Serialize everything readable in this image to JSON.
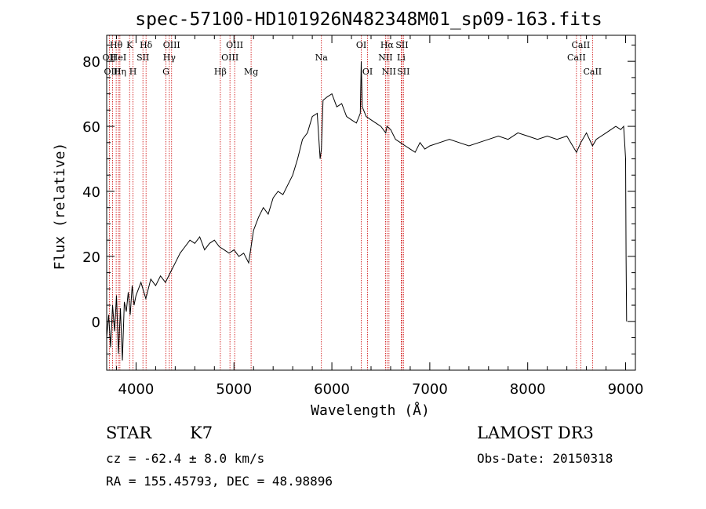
{
  "chart_data": {
    "type": "line",
    "title": "spec-57100-HD101926N482348M01_sp09-163.fits",
    "xlabel": "Wavelength (Å)",
    "ylabel": "Flux (relative)",
    "xlim": [
      3700,
      9100
    ],
    "ylim": [
      -15,
      88
    ],
    "x_ticks": [
      4000,
      5000,
      6000,
      7000,
      8000,
      9000
    ],
    "y_ticks": [
      0,
      20,
      40,
      60,
      80
    ],
    "grid": false,
    "series": [
      {
        "x": [
          3700,
          3720,
          3740,
          3760,
          3780,
          3800,
          3820,
          3840,
          3860,
          3880,
          3900,
          3920,
          3940,
          3960,
          3980,
          4000,
          4050,
          4100,
          4150,
          4200,
          4250,
          4300,
          4350,
          4400,
          4450,
          4500,
          4550,
          4600,
          4650,
          4700,
          4750,
          4800,
          4850,
          4900,
          4950,
          5000,
          5050,
          5100,
          5150,
          5200,
          5250,
          5300,
          5350,
          5400,
          5450,
          5500,
          5550,
          5600,
          5650,
          5700,
          5750,
          5800,
          5850,
          5880,
          5893,
          5910,
          5950,
          6000,
          6050,
          6100,
          6150,
          6200,
          6250,
          6290,
          6300,
          6310,
          6350,
          6400,
          6450,
          6500,
          6550,
          6563,
          6600,
          6650,
          6700,
          6750,
          6800,
          6850,
          6900,
          6950,
          7000,
          7100,
          7200,
          7300,
          7400,
          7500,
          7600,
          7700,
          7800,
          7900,
          8000,
          8100,
          8200,
          8300,
          8400,
          8498,
          8542,
          8600,
          8662,
          8700,
          8800,
          8900,
          8950,
          8980,
          8990,
          9000,
          9005,
          9010
        ],
        "y": [
          -5,
          2,
          -8,
          5,
          -3,
          8,
          -10,
          4,
          -12,
          6,
          3,
          9,
          2,
          11,
          5,
          8,
          12,
          7,
          13,
          11,
          14,
          12,
          15,
          18,
          21,
          23,
          25,
          24,
          26,
          22,
          24,
          25,
          23,
          22,
          21,
          22,
          20,
          21,
          18,
          28,
          32,
          35,
          33,
          38,
          40,
          39,
          42,
          45,
          50,
          56,
          58,
          63,
          64,
          50,
          53,
          68,
          69,
          70,
          66,
          67,
          63,
          62,
          61,
          64,
          80,
          66,
          63,
          62,
          61,
          60,
          58,
          60,
          59,
          56,
          55,
          54,
          53,
          52,
          55,
          53,
          54,
          55,
          56,
          55,
          54,
          55,
          56,
          57,
          56,
          58,
          57,
          56,
          57,
          56,
          57,
          52,
          55,
          58,
          54,
          56,
          58,
          60,
          59,
          60,
          55,
          50,
          20,
          0
        ]
      }
    ],
    "lines": [
      {
        "label": "Hθ",
        "x": 3797,
        "row": 1
      },
      {
        "label": "OII",
        "x": 3727,
        "row": 2
      },
      {
        "label": "HeI",
        "x": 3820,
        "row": 2
      },
      {
        "label": "OIII",
        "x": 3760,
        "row": 3
      },
      {
        "label": "Hη",
        "x": 3835,
        "row": 3
      },
      {
        "label": "K",
        "x": 3934,
        "row": 1
      },
      {
        "label": "H",
        "x": 3969,
        "row": 3
      },
      {
        "label": "SII",
        "x": 4070,
        "row": 2
      },
      {
        "label": "Hδ",
        "x": 4102,
        "row": 1
      },
      {
        "label": "OIII",
        "x": 4363,
        "row": 1
      },
      {
        "label": "Hγ",
        "x": 4340,
        "row": 2
      },
      {
        "label": "G",
        "x": 4305,
        "row": 3
      },
      {
        "label": "OIII",
        "x": 5007,
        "row": 1
      },
      {
        "label": "OIII",
        "x": 4959,
        "row": 2
      },
      {
        "label": "Hβ",
        "x": 4861,
        "row": 3
      },
      {
        "label": "Mg",
        "x": 5175,
        "row": 3
      },
      {
        "label": "Na",
        "x": 5893,
        "row": 2
      },
      {
        "label": "OI",
        "x": 6300,
        "row": 1
      },
      {
        "label": "OI",
        "x": 6364,
        "row": 3
      },
      {
        "label": "Hα",
        "x": 6563,
        "row": 1
      },
      {
        "label": "NII",
        "x": 6548,
        "row": 2
      },
      {
        "label": "NII",
        "x": 6583,
        "row": 3
      },
      {
        "label": "SII",
        "x": 6716,
        "row": 1
      },
      {
        "label": "Li",
        "x": 6708,
        "row": 2
      },
      {
        "label": "SII",
        "x": 6731,
        "row": 3
      },
      {
        "label": "CaII",
        "x": 8542,
        "row": 1
      },
      {
        "label": "CaII",
        "x": 8498,
        "row": 2
      },
      {
        "label": "CaII",
        "x": 8662,
        "row": 3
      }
    ]
  },
  "info": {
    "class_label": "STAR",
    "subclass": "K7",
    "survey": "LAMOST DR3",
    "redshift": "cz = -62.4 ± 8.0 km/s",
    "obs_date": "Obs-Date: 20150318",
    "coords": "RA = 155.45793, DEC =  48.98896"
  },
  "colors": {
    "spectrum": "#000000",
    "line_marker": "#cc0000",
    "axes": "#000000"
  }
}
